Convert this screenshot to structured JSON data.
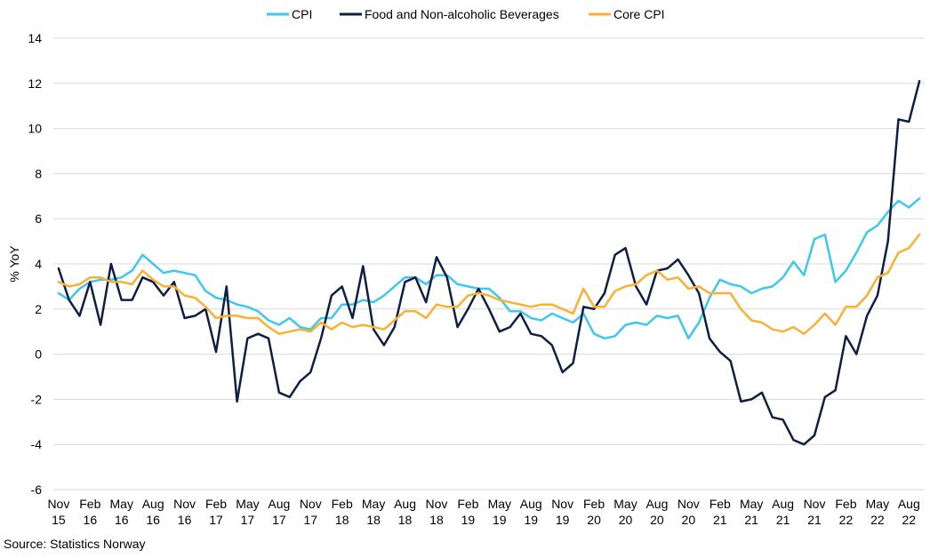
{
  "chart_data": {
    "type": "line",
    "title": "",
    "ylabel": "% YoY",
    "xlabel": "",
    "ylim": [
      -6,
      14
    ],
    "yticks": [
      -6,
      -4,
      -2,
      0,
      2,
      4,
      6,
      8,
      10,
      12,
      14
    ],
    "grid": true,
    "legend_position": "top-center",
    "x_tick_labels": [
      [
        "Nov",
        "15"
      ],
      [
        "Feb",
        "16"
      ],
      [
        "May",
        "16"
      ],
      [
        "Aug",
        "16"
      ],
      [
        "Nov",
        "16"
      ],
      [
        "Feb",
        "17"
      ],
      [
        "May",
        "17"
      ],
      [
        "Aug",
        "17"
      ],
      [
        "Nov",
        "17"
      ],
      [
        "Feb",
        "18"
      ],
      [
        "May",
        "18"
      ],
      [
        "Aug",
        "18"
      ],
      [
        "Nov",
        "18"
      ],
      [
        "Feb",
        "19"
      ],
      [
        "May",
        "19"
      ],
      [
        "Aug",
        "19"
      ],
      [
        "Nov",
        "19"
      ],
      [
        "Feb",
        "20"
      ],
      [
        "May",
        "20"
      ],
      [
        "Aug",
        "20"
      ],
      [
        "Nov",
        "20"
      ],
      [
        "Feb",
        "21"
      ],
      [
        "May",
        "21"
      ],
      [
        "Aug",
        "21"
      ],
      [
        "Nov",
        "21"
      ],
      [
        "Feb",
        "22"
      ],
      [
        "May",
        "22"
      ],
      [
        "Aug",
        "22"
      ]
    ],
    "x_start": "2015-11",
    "x_end": "2022-09",
    "series": [
      {
        "name": "CPI",
        "color": "#3EC8EE",
        "values": [
          2.7,
          2.4,
          2.9,
          3.2,
          3.3,
          3.3,
          3.4,
          3.7,
          4.4,
          4.0,
          3.6,
          3.7,
          3.6,
          3.5,
          2.8,
          2.5,
          2.4,
          2.2,
          2.1,
          1.9,
          1.5,
          1.3,
          1.6,
          1.2,
          1.1,
          1.6,
          1.6,
          2.2,
          2.2,
          2.4,
          2.3,
          2.6,
          3.0,
          3.4,
          3.4,
          3.1,
          3.5,
          3.5,
          3.1,
          3.0,
          2.9,
          2.9,
          2.5,
          1.9,
          1.9,
          1.6,
          1.5,
          1.8,
          1.6,
          1.4,
          1.8,
          0.9,
          0.7,
          0.8,
          1.3,
          1.4,
          1.3,
          1.7,
          1.6,
          1.7,
          0.7,
          1.4,
          2.5,
          3.3,
          3.1,
          3.0,
          2.7,
          2.9,
          3.0,
          3.4,
          4.1,
          3.5,
          5.1,
          5.3,
          3.2,
          3.7,
          4.5,
          5.4,
          5.7,
          6.3,
          6.8,
          6.5,
          6.9
        ]
      },
      {
        "name": "Food and Non-alcoholic Beverages",
        "color": "#0E1E45",
        "values": [
          3.8,
          2.4,
          1.7,
          3.2,
          1.3,
          4.0,
          2.4,
          2.4,
          3.4,
          3.2,
          2.6,
          3.2,
          1.6,
          1.7,
          2.0,
          0.1,
          3.0,
          -2.1,
          0.7,
          0.9,
          0.7,
          -1.7,
          -1.9,
          -1.2,
          -0.8,
          0.7,
          2.6,
          3.0,
          1.6,
          3.9,
          1.1,
          0.4,
          1.2,
          3.2,
          3.4,
          2.3,
          4.3,
          3.4,
          1.2,
          2.0,
          2.9,
          2.0,
          1.0,
          1.2,
          1.8,
          0.9,
          0.8,
          0.4,
          -0.8,
          -0.4,
          2.1,
          2.0,
          2.7,
          4.4,
          4.7,
          3.0,
          2.2,
          3.7,
          3.8,
          4.2,
          3.5,
          2.7,
          0.7,
          0.1,
          -0.3,
          -2.1,
          -2.0,
          -1.7,
          -2.8,
          -2.9,
          -3.8,
          -4.0,
          -3.6,
          -1.9,
          -1.6,
          0.8,
          0.0,
          1.7,
          2.6,
          5.0,
          10.4,
          10.3,
          12.1
        ]
      },
      {
        "name": "Core CPI",
        "color": "#FBB034",
        "values": [
          3.2,
          3.0,
          3.1,
          3.4,
          3.4,
          3.2,
          3.2,
          3.1,
          3.7,
          3.3,
          3.0,
          3.0,
          2.6,
          2.5,
          2.1,
          1.6,
          1.7,
          1.7,
          1.6,
          1.6,
          1.2,
          0.9,
          1.0,
          1.1,
          1.0,
          1.4,
          1.1,
          1.4,
          1.2,
          1.3,
          1.2,
          1.1,
          1.5,
          1.9,
          1.9,
          1.6,
          2.2,
          2.1,
          2.1,
          2.6,
          2.7,
          2.6,
          2.4,
          2.3,
          2.2,
          2.1,
          2.2,
          2.2,
          2.0,
          1.8,
          2.9,
          2.1,
          2.1,
          2.8,
          3.0,
          3.1,
          3.5,
          3.7,
          3.3,
          3.4,
          2.9,
          3.0,
          2.7,
          2.7,
          2.7,
          2.0,
          1.5,
          1.4,
          1.1,
          1.0,
          1.2,
          0.9,
          1.3,
          1.8,
          1.3,
          2.1,
          2.1,
          2.6,
          3.4,
          3.6,
          4.5,
          4.7,
          5.3
        ]
      }
    ],
    "source": "Source: Statistics Norway"
  }
}
